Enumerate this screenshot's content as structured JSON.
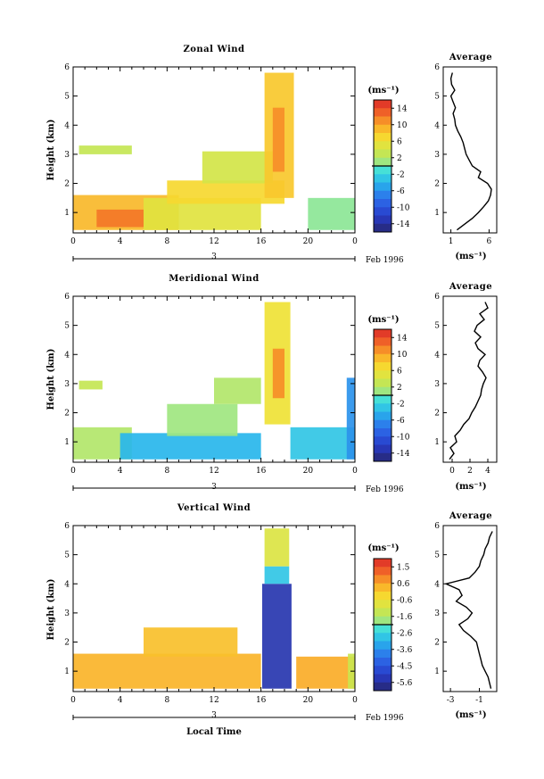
{
  "figure": {
    "date_label": "Feb 1996",
    "day_label": "3",
    "bottom_xlabel": "Local Time",
    "avg_title": "Average",
    "units": "(ms⁻¹)"
  },
  "panels": [
    {
      "title": "Zonal Wind",
      "ylabel": "Height (km)",
      "cbar_ticks": [
        "14",
        "10",
        "6",
        "2",
        "-2",
        "-6",
        "-10",
        "-14"
      ],
      "avg_xticks": [
        "1",
        "6"
      ]
    },
    {
      "title": "Meridional Wind",
      "ylabel": "Height (km)",
      "cbar_ticks": [
        "14",
        "10",
        "6",
        "2",
        "-2",
        "-6",
        "-10",
        "-14"
      ],
      "avg_xticks": [
        "0",
        "2",
        "4"
      ]
    },
    {
      "title": "Vertical Wind",
      "ylabel": "Height (km)",
      "cbar_ticks": [
        "1.5",
        "0.6",
        "-0.6",
        "-1.6",
        "-2.6",
        "-3.6",
        "-4.5",
        "-5.6"
      ],
      "avg_xticks": [
        "-3",
        "-1"
      ]
    }
  ],
  "chart_data": [
    {
      "type": "heatmap",
      "title": "Zonal Wind",
      "xlabel": "",
      "ylabel": "Height (km)",
      "x_ticks": [
        "0",
        "4",
        "8",
        "12",
        "16",
        "20",
        "0"
      ],
      "y_ticks": [
        "1",
        "2",
        "3",
        "4",
        "5",
        "6"
      ],
      "xlim": [
        0,
        24
      ],
      "ylim": [
        0.3,
        6
      ],
      "colorbar_unit": "(ms⁻¹)",
      "colorbar_ticks": [
        14,
        10,
        6,
        2,
        -2,
        -6,
        -10,
        -14
      ],
      "colorbar_range": [
        -16,
        16
      ],
      "approx_field": [
        {
          "x0": 0,
          "x1": 9,
          "y0": 0.4,
          "y1": 1.6,
          "value": 9
        },
        {
          "x0": 2,
          "x1": 6,
          "y0": 0.5,
          "y1": 1.1,
          "value": 12
        },
        {
          "x0": 6,
          "x1": 16,
          "y0": 0.4,
          "y1": 1.5,
          "value": 5
        },
        {
          "x0": 8,
          "x1": 18,
          "y0": 1.3,
          "y1": 2.1,
          "value": 7
        },
        {
          "x0": 11,
          "x1": 17,
          "y0": 2.0,
          "y1": 3.1,
          "value": 4
        },
        {
          "x0": 0.5,
          "x1": 5,
          "y0": 3.0,
          "y1": 3.3,
          "value": 3
        },
        {
          "x0": 16.3,
          "x1": 18.8,
          "y0": 1.5,
          "y1": 5.8,
          "value": 8
        },
        {
          "x0": 17,
          "x1": 18,
          "y0": 2.4,
          "y1": 4.6,
          "value": 11
        },
        {
          "x0": 20,
          "x1": 24,
          "y0": 0.4,
          "y1": 1.5,
          "value": 0
        }
      ],
      "average_profile": {
        "title": "Average",
        "x_ticks": [
          1,
          6
        ],
        "xlim": [
          0,
          7
        ],
        "xlabel": "(ms⁻¹)",
        "height_km": [
          0.4,
          0.6,
          0.8,
          1.0,
          1.2,
          1.4,
          1.6,
          1.8,
          2.0,
          2.2,
          2.4,
          2.6,
          2.8,
          3.0,
          3.2,
          3.4,
          3.6,
          3.8,
          4.0,
          4.2,
          4.4,
          4.6,
          4.8,
          5.0,
          5.2,
          5.4,
          5.6,
          5.8
        ],
        "wind": [
          1.8,
          2.8,
          3.8,
          4.6,
          5.3,
          5.9,
          6.2,
          6.3,
          5.8,
          4.6,
          4.9,
          3.8,
          3.4,
          3.0,
          2.8,
          2.6,
          2.3,
          1.9,
          1.6,
          1.5,
          1.3,
          1.6,
          1.3,
          1.0,
          1.5,
          1.1,
          1.0,
          1.2
        ]
      }
    },
    {
      "type": "heatmap",
      "title": "Meridional Wind",
      "xlabel": "",
      "ylabel": "Height (km)",
      "x_ticks": [
        "0",
        "4",
        "8",
        "12",
        "16",
        "20",
        "0"
      ],
      "y_ticks": [
        "1",
        "2",
        "3",
        "4",
        "5",
        "6"
      ],
      "xlim": [
        0,
        24
      ],
      "ylim": [
        0.3,
        6
      ],
      "colorbar_unit": "(ms⁻¹)",
      "colorbar_ticks": [
        14,
        10,
        6,
        2,
        -2,
        -6,
        -10,
        -14
      ],
      "colorbar_range": [
        -16,
        16
      ],
      "approx_field": [
        {
          "x0": 0,
          "x1": 5,
          "y0": 0.4,
          "y1": 1.5,
          "value": 2
        },
        {
          "x0": 4,
          "x1": 16,
          "y0": 0.4,
          "y1": 1.3,
          "value": -4
        },
        {
          "x0": 8,
          "x1": 14,
          "y0": 1.2,
          "y1": 2.3,
          "value": 1
        },
        {
          "x0": 12,
          "x1": 16,
          "y0": 2.3,
          "y1": 3.2,
          "value": 2
        },
        {
          "x0": 0.5,
          "x1": 2.5,
          "y0": 2.8,
          "y1": 3.1,
          "value": 3
        },
        {
          "x0": 16.3,
          "x1": 18.5,
          "y0": 1.6,
          "y1": 5.8,
          "value": 6
        },
        {
          "x0": 17,
          "x1": 18,
          "y0": 2.5,
          "y1": 4.2,
          "value": 11
        },
        {
          "x0": 18.5,
          "x1": 24,
          "y0": 0.4,
          "y1": 1.5,
          "value": -3
        },
        {
          "x0": 23.3,
          "x1": 24,
          "y0": 0.4,
          "y1": 3.2,
          "value": -6
        }
      ],
      "average_profile": {
        "title": "Average",
        "x_ticks": [
          0,
          2,
          4
        ],
        "xlim": [
          -1,
          5
        ],
        "xlabel": "(ms⁻¹)",
        "height_km": [
          0.4,
          0.6,
          0.8,
          1.0,
          1.2,
          1.4,
          1.6,
          1.8,
          2.0,
          2.2,
          2.4,
          2.6,
          2.8,
          3.0,
          3.2,
          3.4,
          3.6,
          3.8,
          4.0,
          4.2,
          4.4,
          4.6,
          4.8,
          5.0,
          5.2,
          5.4,
          5.6,
          5.8
        ],
        "wind": [
          -0.3,
          0.2,
          -0.2,
          0.5,
          0.3,
          0.9,
          1.3,
          1.9,
          2.2,
          2.6,
          2.9,
          3.2,
          3.3,
          3.5,
          3.8,
          3.4,
          2.9,
          3.1,
          3.7,
          2.9,
          2.6,
          3.2,
          2.5,
          2.8,
          3.6,
          3.1,
          4.0,
          3.7
        ]
      }
    },
    {
      "type": "heatmap",
      "title": "Vertical Wind",
      "xlabel": "Local Time",
      "ylabel": "Height (km)",
      "x_ticks": [
        "0",
        "4",
        "8",
        "12",
        "16",
        "20",
        "0"
      ],
      "y_ticks": [
        "1",
        "2",
        "3",
        "4",
        "5",
        "6"
      ],
      "xlim": [
        0,
        24
      ],
      "ylim": [
        0.3,
        6
      ],
      "colorbar_unit": "(ms⁻¹)",
      "colorbar_ticks": [
        1.5,
        0.6,
        -0.6,
        -1.6,
        -2.6,
        -3.6,
        -4.5,
        -5.6
      ],
      "colorbar_range": [
        -6.1,
        2.0
      ],
      "approx_field": [
        {
          "x0": 0,
          "x1": 16,
          "y0": 0.4,
          "y1": 1.6,
          "value": 0.3
        },
        {
          "x0": 6,
          "x1": 14,
          "y0": 1.5,
          "y1": 2.5,
          "value": 0.1
        },
        {
          "x0": 19,
          "x1": 24,
          "y0": 0.4,
          "y1": 1.5,
          "value": 0.4
        },
        {
          "x0": 16.1,
          "x1": 18.6,
          "y0": 0.4,
          "y1": 4.0,
          "value": -5.4
        },
        {
          "x0": 16.3,
          "x1": 18.4,
          "y0": 4.0,
          "y1": 4.6,
          "value": -2.8
        },
        {
          "x0": 16.3,
          "x1": 18.4,
          "y0": 4.6,
          "y1": 5.9,
          "value": -0.9
        },
        {
          "x0": 23.4,
          "x1": 24,
          "y0": 0.4,
          "y1": 1.6,
          "value": -1.2
        }
      ],
      "average_profile": {
        "title": "Average",
        "x_ticks": [
          -3,
          -1
        ],
        "xlim": [
          -3.5,
          0.2
        ],
        "xlabel": "(ms⁻¹)",
        "height_km": [
          0.4,
          0.6,
          0.8,
          1.0,
          1.2,
          1.4,
          1.6,
          1.8,
          2.0,
          2.2,
          2.4,
          2.6,
          2.8,
          3.0,
          3.2,
          3.4,
          3.6,
          3.8,
          4.0,
          4.2,
          4.4,
          4.6,
          4.8,
          5.0,
          5.2,
          5.4,
          5.6,
          5.8
        ],
        "wind": [
          -0.2,
          -0.3,
          -0.4,
          -0.6,
          -0.8,
          -0.9,
          -1.0,
          -1.1,
          -1.2,
          -1.6,
          -2.1,
          -2.4,
          -1.8,
          -1.5,
          -1.9,
          -2.6,
          -2.2,
          -2.4,
          -3.3,
          -1.7,
          -1.3,
          -1.0,
          -0.9,
          -0.7,
          -0.6,
          -0.4,
          -0.3,
          -0.1
        ]
      }
    }
  ]
}
